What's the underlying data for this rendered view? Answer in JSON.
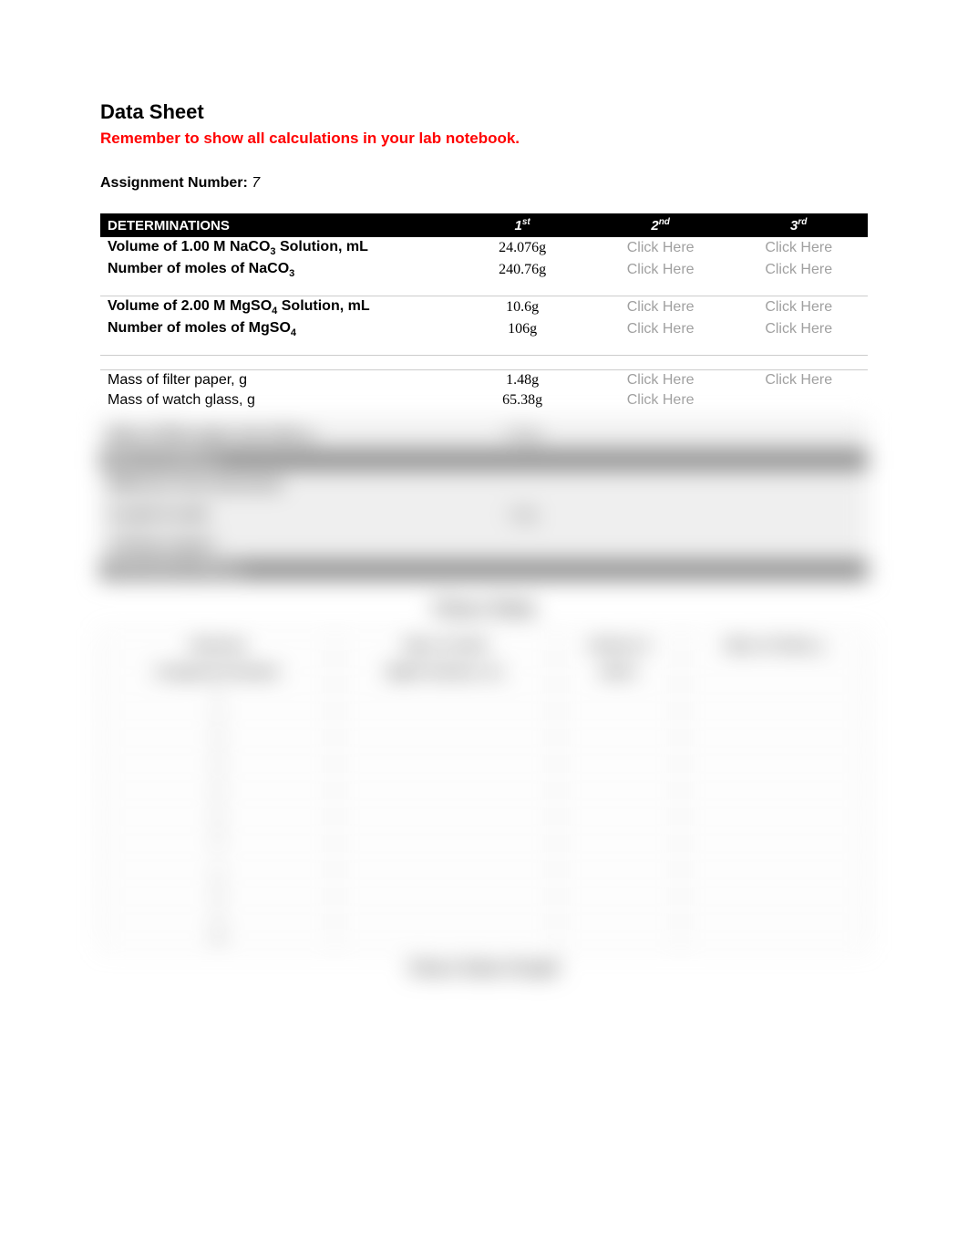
{
  "header": {
    "title": "Data Sheet",
    "warning": "Remember to show all calculations in your lab notebook.",
    "assignment_label": "Assignment Number: ",
    "assignment_number": "7"
  },
  "table": {
    "header": {
      "determinations": "DETERMINATIONS",
      "col1": "1",
      "col1_sup": "st",
      "col2": "2",
      "col2_sup": "nd",
      "col3": "3",
      "col3_sup": "rd"
    },
    "placeholder": "Click Here",
    "rows": {
      "r1": {
        "label_pre": "Volume of 1.00 M NaCO",
        "label_sub": "3",
        "label_post": " Solution, mL",
        "v1": "24.076g"
      },
      "r2": {
        "label_pre": "Number of moles of NaCO",
        "label_sub": "3",
        "label_post": "",
        "v1": "240.76g"
      },
      "r3": {
        "label_pre": "Volume of 2.00 M MgSO",
        "label_sub": "4",
        "label_post": " Solution, mL",
        "v1": "10.6g"
      },
      "r4": {
        "label_pre": "Number of moles of MgSO",
        "label_sub": "4",
        "label_post": "",
        "v1": "106g"
      },
      "r5": {
        "label": "Mass of filter paper, g",
        "v1": "1.48g"
      },
      "r6": {
        "label": "Mass of watch glass, g",
        "v1": "65.38g"
      }
    }
  },
  "blurred": {
    "class_data_title": "Class Data",
    "class_graph_title": "Class Data Graph",
    "col_headers": [
      "Unknown",
      "Mass of Solid",
      "Volume of",
      "Mass of Solid, g"
    ],
    "sub_headers": [
      "Assignment Number",
      "MgSO Solution, mL",
      "NaCO",
      ""
    ],
    "rows": [
      [
        "1",
        "",
        "",
        ""
      ],
      [
        "2",
        "",
        "",
        ""
      ],
      [
        "3",
        "",
        "",
        ""
      ],
      [
        "4",
        "",
        "",
        ""
      ],
      [
        "5",
        "",
        "",
        ""
      ],
      [
        "6",
        "",
        "",
        ""
      ],
      [
        "7",
        "",
        "",
        ""
      ],
      [
        "8",
        "",
        "",
        ""
      ],
      [
        "9",
        "",
        "",
        ""
      ],
      [
        "10",
        "",
        "",
        ""
      ]
    ]
  },
  "colors": {
    "text": "#000000",
    "warning": "#ff0000",
    "header_bg": "#000000",
    "header_fg": "#ffffff",
    "placeholder": "#a0a0a0",
    "divider": "#cccccc",
    "background": "#ffffff"
  },
  "typography": {
    "title_size_pt": 17,
    "body_size_pt": 12,
    "value_font": "serif"
  }
}
